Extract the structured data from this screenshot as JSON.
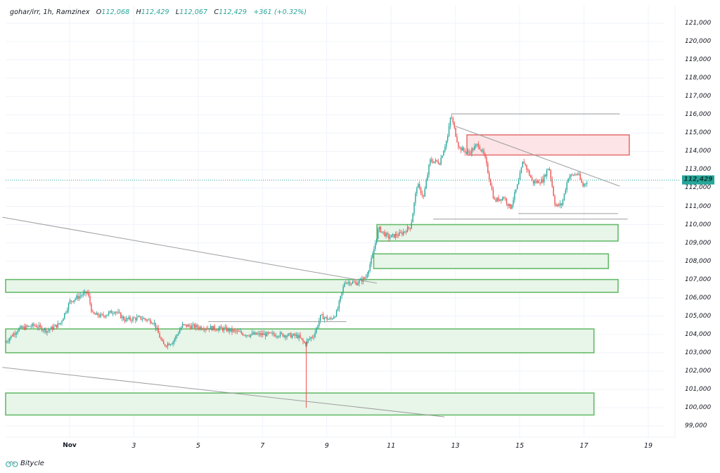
{
  "legend": {
    "symbol": "gohar/irr, 1h, Ramzinex",
    "open_label": "O",
    "open": "112,068",
    "high_label": "H",
    "high": "112,429",
    "low_label": "L",
    "low": "112,067",
    "close_label": "C",
    "close": "112,429",
    "change": "+361 (+0.32%)"
  },
  "current_price_tag": "112,429",
  "brand": {
    "name": "Bitycle",
    "icon": "bicycle-logo-icon"
  },
  "colors": {
    "up": "#26a69a",
    "down": "#ef5350",
    "support_zone_fill": "#e8f5e9",
    "support_zone_border": "#66bb6a",
    "resistance_zone_fill": "#fde4e6",
    "resistance_zone_border": "#e57373",
    "trendline": "#9e9e9e",
    "grid": "#f0f3fa",
    "price_line": "#26a69a"
  },
  "chart_data": {
    "type": "candlestick",
    "title": "gohar/irr, 1h, Ramzinex",
    "timeframe": "1h",
    "exchange": "Ramzinex",
    "xlabel": "",
    "ylabel": "",
    "x_ticks": [
      "Nov",
      "3",
      "5",
      "7",
      "9",
      "11",
      "13",
      "15",
      "17",
      "19"
    ],
    "y_ticks": [
      "121,000",
      "120,000",
      "119,000",
      "118,000",
      "117,000",
      "116,000",
      "115,000",
      "114,000",
      "113,000",
      "112,000",
      "111,000",
      "110,000",
      "109,000",
      "108,000",
      "107,000",
      "106,000",
      "105,000",
      "104,000",
      "103,000",
      "102,000",
      "101,000",
      "100,000",
      "99,000"
    ],
    "ylim": [
      98700,
      121300
    ],
    "grid": true,
    "last_price": 112429,
    "ohlc_last": {
      "open": 112068,
      "high": 112429,
      "low": 112067,
      "close": 112429,
      "change": 361,
      "change_pct": 0.32
    },
    "approx_close_path": [
      {
        "day": 0.0,
        "price": 103600
      },
      {
        "day": 0.4,
        "price": 104300
      },
      {
        "day": 0.9,
        "price": 104500
      },
      {
        "day": 1.3,
        "price": 104200
      },
      {
        "day": 1.7,
        "price": 104600
      },
      {
        "day": 2.0,
        "price": 105800
      },
      {
        "day": 2.3,
        "price": 106100
      },
      {
        "day": 2.55,
        "price": 106300
      },
      {
        "day": 2.7,
        "price": 105100
      },
      {
        "day": 3.0,
        "price": 105000
      },
      {
        "day": 3.4,
        "price": 105300
      },
      {
        "day": 3.7,
        "price": 104800
      },
      {
        "day": 4.2,
        "price": 104900
      },
      {
        "day": 4.6,
        "price": 104700
      },
      {
        "day": 4.9,
        "price": 103400
      },
      {
        "day": 5.2,
        "price": 103600
      },
      {
        "day": 5.5,
        "price": 104500
      },
      {
        "day": 6.0,
        "price": 104400
      },
      {
        "day": 6.8,
        "price": 104300
      },
      {
        "day": 7.5,
        "price": 104000
      },
      {
        "day": 8.5,
        "price": 104000
      },
      {
        "day": 9.1,
        "price": 103900
      },
      {
        "day": 9.3,
        "price": 103500
      },
      {
        "day": 9.6,
        "price": 104000
      },
      {
        "day": 9.8,
        "price": 105000
      },
      {
        "day": 10.1,
        "price": 104800
      },
      {
        "day": 10.3,
        "price": 105200
      },
      {
        "day": 10.55,
        "price": 106900
      },
      {
        "day": 10.9,
        "price": 106800
      },
      {
        "day": 11.2,
        "price": 107100
      },
      {
        "day": 11.4,
        "price": 108200
      },
      {
        "day": 11.6,
        "price": 109800
      },
      {
        "day": 11.9,
        "price": 109300
      },
      {
        "day": 12.3,
        "price": 109500
      },
      {
        "day": 12.6,
        "price": 109900
      },
      {
        "day": 12.8,
        "price": 112200
      },
      {
        "day": 13.0,
        "price": 111500
      },
      {
        "day": 13.2,
        "price": 113500
      },
      {
        "day": 13.5,
        "price": 113400
      },
      {
        "day": 13.75,
        "price": 114800
      },
      {
        "day": 13.85,
        "price": 116000
      },
      {
        "day": 14.1,
        "price": 114200
      },
      {
        "day": 14.4,
        "price": 113900
      },
      {
        "day": 14.7,
        "price": 114400
      },
      {
        "day": 14.9,
        "price": 113700
      },
      {
        "day": 15.2,
        "price": 111300
      },
      {
        "day": 15.5,
        "price": 111500
      },
      {
        "day": 15.7,
        "price": 110900
      },
      {
        "day": 15.95,
        "price": 112300
      },
      {
        "day": 16.1,
        "price": 113500
      },
      {
        "day": 16.4,
        "price": 112300
      },
      {
        "day": 16.7,
        "price": 112400
      },
      {
        "day": 16.9,
        "price": 113200
      },
      {
        "day": 17.1,
        "price": 111000
      },
      {
        "day": 17.3,
        "price": 111100
      },
      {
        "day": 17.5,
        "price": 112600
      },
      {
        "day": 17.8,
        "price": 112800
      },
      {
        "day": 17.95,
        "price": 112100
      },
      {
        "day": 18.1,
        "price": 112429
      }
    ],
    "wick_spike": {
      "day": 9.35,
      "low": 100000,
      "high": 103600
    },
    "annotations": {
      "support_zones": [
        {
          "from_day": 11.55,
          "to_day": 19.05,
          "low": 109100,
          "high": 110000
        },
        {
          "from_day": 11.45,
          "to_day": 18.75,
          "low": 107600,
          "high": 108400
        },
        {
          "from_day": 0.0,
          "to_day": 19.05,
          "low": 106300,
          "high": 107000
        },
        {
          "from_day": 0.0,
          "to_day": 18.3,
          "low": 103000,
          "high": 104300
        },
        {
          "from_day": 0.0,
          "to_day": 18.3,
          "low": 99600,
          "high": 100800
        }
      ],
      "resistance_zones": [
        {
          "from_day": 14.35,
          "to_day": 19.4,
          "low": 113800,
          "high": 114900
        }
      ],
      "horizontal_lines": [
        {
          "from_day": 13.85,
          "to_day": 19.1,
          "price": 116050
        },
        {
          "from_day": 15.95,
          "to_day": 19.05,
          "price": 110600
        },
        {
          "from_day": 13.3,
          "to_day": 19.35,
          "price": 110300
        },
        {
          "from_day": 6.3,
          "to_day": 10.6,
          "price": 104700
        }
      ],
      "trendlines": [
        {
          "from": {
            "day": 13.95,
            "price": 115400
          },
          "to": {
            "day": 19.1,
            "price": 112100
          }
        },
        {
          "from": {
            "day": -0.1,
            "price": 110400
          },
          "to": {
            "day": 11.55,
            "price": 106800
          }
        },
        {
          "from": {
            "day": -0.1,
            "price": 102200
          },
          "to": {
            "day": 13.65,
            "price": 99500
          }
        }
      ]
    }
  }
}
